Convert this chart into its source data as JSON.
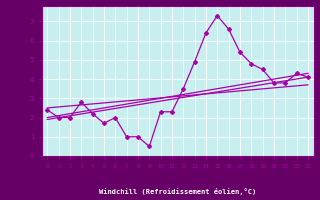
{
  "background_color": "#c8eef0",
  "axis_bottom_color": "#880088",
  "grid_color": "#ffffff",
  "line_color": "#aa00aa",
  "tick_label_color": "#aa00aa",
  "xlabel": "Windchill (Refroidissement éolien,°C)",
  "xlabel_color": "#ffffff",
  "xlabel_bg": "#660066",
  "xlim": [
    -0.5,
    23.5
  ],
  "ylim": [
    0,
    7.8
  ],
  "xticks": [
    0,
    1,
    2,
    3,
    4,
    5,
    6,
    7,
    8,
    9,
    10,
    11,
    12,
    13,
    14,
    15,
    16,
    17,
    18,
    19,
    20,
    21,
    22,
    23
  ],
  "yticks": [
    0,
    1,
    2,
    3,
    4,
    5,
    6,
    7
  ],
  "main_x": [
    0,
    1,
    2,
    3,
    4,
    5,
    6,
    7,
    8,
    9,
    10,
    11,
    12,
    13,
    14,
    15,
    16,
    17,
    18,
    19,
    20,
    21,
    22,
    23
  ],
  "main_y": [
    2.4,
    2.0,
    2.0,
    2.8,
    2.2,
    1.7,
    2.0,
    1.0,
    1.0,
    0.5,
    2.3,
    2.3,
    3.5,
    4.9,
    6.4,
    7.3,
    6.6,
    5.4,
    4.8,
    4.5,
    3.8,
    3.8,
    4.3,
    4.1
  ],
  "trend1_x": [
    0,
    23
  ],
  "trend1_y": [
    1.9,
    4.1
  ],
  "trend2_x": [
    0,
    23
  ],
  "trend2_y": [
    2.0,
    4.3
  ],
  "trend3_x": [
    0,
    23
  ],
  "trend3_y": [
    2.5,
    3.7
  ]
}
